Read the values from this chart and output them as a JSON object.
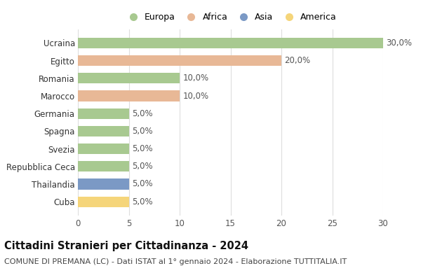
{
  "categories": [
    "Cuba",
    "Thailandia",
    "Repubblica Ceca",
    "Svezia",
    "Spagna",
    "Germania",
    "Marocco",
    "Romania",
    "Egitto",
    "Ucraina"
  ],
  "values": [
    5.0,
    5.0,
    5.0,
    5.0,
    5.0,
    5.0,
    10.0,
    10.0,
    20.0,
    30.0
  ],
  "continents": [
    "America",
    "Asia",
    "Europa",
    "Europa",
    "Europa",
    "Europa",
    "Africa",
    "Europa",
    "Africa",
    "Europa"
  ],
  "colors": {
    "Europa": "#a8c990",
    "Africa": "#e8b896",
    "Asia": "#7b99c5",
    "America": "#f5d57a"
  },
  "legend_order": [
    "Europa",
    "Africa",
    "Asia",
    "America"
  ],
  "xlim": [
    0,
    30
  ],
  "xticks": [
    0,
    5,
    10,
    15,
    20,
    25,
    30
  ],
  "title": "Cittadini Stranieri per Cittadinanza - 2024",
  "subtitle": "COMUNE DI PREMANA (LC) - Dati ISTAT al 1° gennaio 2024 - Elaborazione TUTTITALIA.IT",
  "title_fontsize": 10.5,
  "subtitle_fontsize": 8,
  "label_fontsize": 8.5,
  "bar_label_fontsize": 8.5,
  "legend_fontsize": 9,
  "bg_color": "#ffffff",
  "grid_color": "#dddddd"
}
